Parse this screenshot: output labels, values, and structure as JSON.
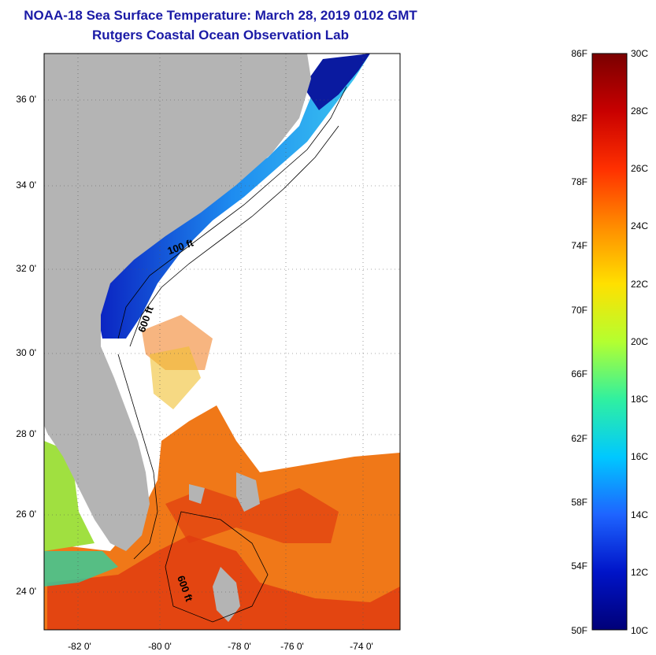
{
  "title": {
    "line1": "NOAA-18 Sea Surface Temperature:  March 28, 2019 0102 GMT",
    "line2": "Rutgers Coastal Ocean Observation Lab"
  },
  "map": {
    "lat_labels": [
      "36 0'",
      "34 0'",
      "32 0'",
      "30 0'",
      "28 0'",
      "26 0'",
      "24 0'"
    ],
    "lon_labels": [
      "-82 0'",
      "-80 0'",
      "-78 0'",
      "-76 0'",
      "-74 0'"
    ],
    "contour_labels": [
      "100 ft",
      "600 ft",
      "600 ft"
    ],
    "colors": {
      "land": "#b4b4b4",
      "cloud": "#ffffff",
      "cold": "#0a1aa0",
      "cool": "#1e78f0",
      "warm": "#f07818",
      "hot": "#e03c10"
    }
  },
  "colorbar": {
    "fahrenheit_labels": [
      "86F",
      "82F",
      "78F",
      "74F",
      "70F",
      "66F",
      "62F",
      "58F",
      "54F",
      "50F"
    ],
    "celsius_labels": [
      "30C",
      "28C",
      "26C",
      "24C",
      "22C",
      "20C",
      "18C",
      "16C",
      "14C",
      "12C",
      "10C"
    ],
    "gradient": [
      "#7a0000",
      "#c80000",
      "#ff3000",
      "#ff8c00",
      "#ffe000",
      "#b4ff30",
      "#30f0a0",
      "#00c8ff",
      "#1e64ff",
      "#0014c8",
      "#000078"
    ]
  }
}
